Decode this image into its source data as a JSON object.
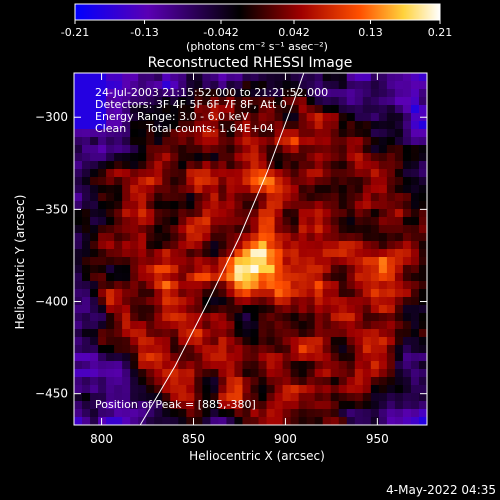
{
  "colorbar": {
    "tick_labels": [
      "-0.21",
      "-0.13",
      "-0.042",
      "0.042",
      "0.13",
      "0.21"
    ],
    "tick_values": [
      -0.21,
      -0.13,
      -0.042,
      0.042,
      0.13,
      0.21
    ],
    "range": [
      -0.21,
      0.21
    ],
    "units": "(photons cm⁻² s⁻¹ asec⁻²)",
    "colors": [
      "#0000ff",
      "#5a00b4",
      "#000000",
      "#a00000",
      "#ff5000",
      "#ffd23c",
      "#ffffff"
    ]
  },
  "chart_data": {
    "type": "heatmap",
    "title": "Reconstructed RHESSI Image",
    "xlabel": "Heliocentric X (arcsec)",
    "ylabel": "Heliocentric Y (arcsec)",
    "xlim": [
      785,
      977
    ],
    "ylim": [
      -467,
      -276
    ],
    "x_ticks": [
      800,
      850,
      900,
      950
    ],
    "x_tick_labels": [
      "800",
      "850",
      "900",
      "950"
    ],
    "y_ticks": [
      -300,
      -350,
      -400,
      -450
    ],
    "y_tick_labels": [
      "−300",
      "−350",
      "−400",
      "−450"
    ],
    "peak": [
      885,
      -380
    ],
    "limb_curve": [
      [
        821,
        -467
      ],
      [
        840,
        -435
      ],
      [
        858,
        -400
      ],
      [
        875,
        -365
      ],
      [
        890,
        -330
      ],
      [
        905,
        -290
      ],
      [
        910,
        -276
      ]
    ],
    "annotations": {
      "time": "24-Jul-2003 21:15:52.000 to 21:21:52.000",
      "detectors": "Detectors: 3F 4F 5F 6F 7F 8F, Att 0",
      "energy": "Energy Range: 3.0 - 6.0 keV",
      "method": "Clean",
      "counts": "Total counts: 1.64E+04",
      "peak_label": "Position of Peak = [885,-380]"
    }
  },
  "footer": {
    "timestamp": "4-May-2022 04:35"
  }
}
